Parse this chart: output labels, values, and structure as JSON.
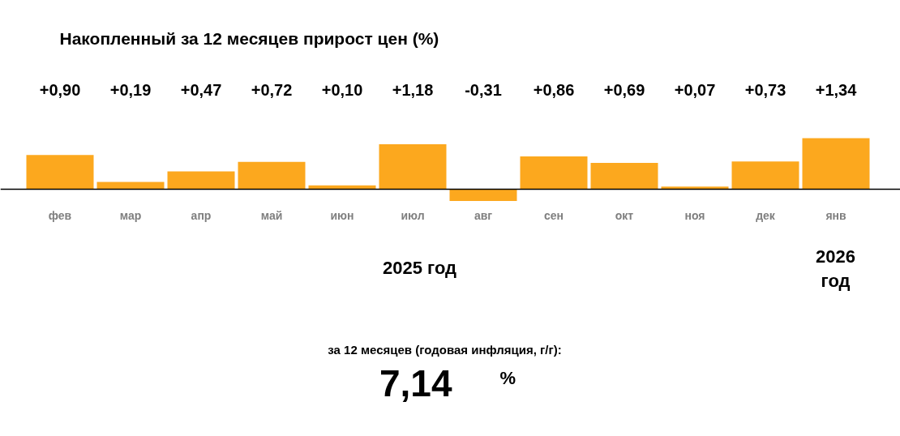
{
  "chart_data": {
    "type": "bar",
    "title": "Накопленный за 12 месяцев прирост цен (%)",
    "categories": [
      "фев",
      "мар",
      "апр",
      "май",
      "июн",
      "июл",
      "авг",
      "сен",
      "окт",
      "ноя",
      "дек",
      "янв"
    ],
    "values": [
      0.9,
      0.19,
      0.47,
      0.72,
      0.1,
      1.18,
      -0.31,
      0.86,
      0.69,
      0.07,
      0.73,
      1.34
    ],
    "value_labels": [
      "+0,90",
      "+0,19",
      "+0,47",
      "+0,72",
      "+0,10",
      "+1,18",
      "-0,31",
      "+0,86",
      "+0,69",
      "+0,07",
      "+0,73",
      "+1,34"
    ],
    "color": "#fca81e",
    "annotations": [
      "2025 год",
      "2026 год",
      "за 12 месяцев (годовая инфляция, г/г):",
      "7,14 %"
    ]
  }
}
